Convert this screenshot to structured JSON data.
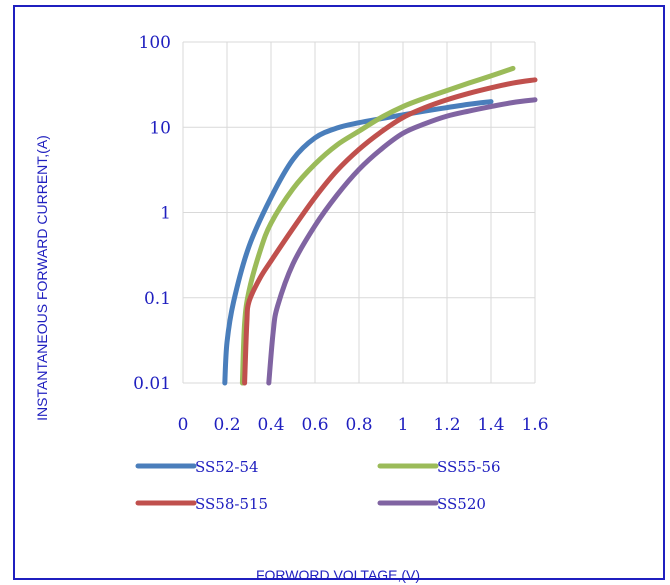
{
  "chart_data": {
    "type": "line",
    "title": "",
    "xlabel": "FORWORD VOLTAGE,(V)",
    "ylabel": "INSTANTANEOUS FORWARD CURRENT,(A)",
    "x_scale": "linear",
    "y_scale": "log",
    "xlim": [
      0,
      1.6
    ],
    "ylim": [
      0.01,
      100
    ],
    "grid": true,
    "legend_position": "bottom",
    "x_tick_labels": [
      "0",
      "0.2",
      "0.4",
      "0.6",
      "0.8",
      "1",
      "1.2",
      "1.4",
      "1.6"
    ],
    "x_tick_values": [
      0,
      0.2,
      0.4,
      0.6,
      0.8,
      1.0,
      1.2,
      1.4,
      1.6
    ],
    "y_tick_labels": [
      "0.01",
      "0.1",
      "1",
      "10",
      "100"
    ],
    "y_tick_values": [
      0.01,
      0.1,
      1,
      10,
      100
    ],
    "series": [
      {
        "name": "SS52-54",
        "color": "#4a7ebb",
        "points": [
          [
            0.19,
            0.01
          ],
          [
            0.2,
            0.03
          ],
          [
            0.23,
            0.09
          ],
          [
            0.3,
            0.4
          ],
          [
            0.4,
            1.5
          ],
          [
            0.5,
            4.2
          ],
          [
            0.6,
            7.5
          ],
          [
            0.7,
            9.8
          ],
          [
            0.8,
            11.3
          ],
          [
            0.9,
            12.6
          ],
          [
            1.0,
            14.0
          ],
          [
            1.1,
            15.5
          ],
          [
            1.2,
            17.0
          ],
          [
            1.3,
            18.6
          ],
          [
            1.4,
            20.0
          ]
        ]
      },
      {
        "name": "SS55-56",
        "color": "#9bbb59",
        "points": [
          [
            0.27,
            0.01
          ],
          [
            0.28,
            0.05
          ],
          [
            0.3,
            0.12
          ],
          [
            0.35,
            0.35
          ],
          [
            0.4,
            0.75
          ],
          [
            0.5,
            1.9
          ],
          [
            0.6,
            3.7
          ],
          [
            0.7,
            6.2
          ],
          [
            0.8,
            9.0
          ],
          [
            0.9,
            13.0
          ],
          [
            1.0,
            17.5
          ],
          [
            1.1,
            22.0
          ],
          [
            1.2,
            27.0
          ],
          [
            1.3,
            33.0
          ],
          [
            1.4,
            40.0
          ],
          [
            1.5,
            49.0
          ]
        ]
      },
      {
        "name": "SS58-515",
        "color": "#c0504d",
        "points": [
          [
            0.28,
            0.01
          ],
          [
            0.29,
            0.05
          ],
          [
            0.3,
            0.09
          ],
          [
            0.35,
            0.17
          ],
          [
            0.4,
            0.27
          ],
          [
            0.5,
            0.65
          ],
          [
            0.6,
            1.5
          ],
          [
            0.7,
            3.1
          ],
          [
            0.8,
            5.5
          ],
          [
            0.9,
            8.8
          ],
          [
            1.0,
            13.0
          ],
          [
            1.1,
            17.0
          ],
          [
            1.2,
            21.0
          ],
          [
            1.3,
            25.0
          ],
          [
            1.4,
            29.0
          ],
          [
            1.5,
            33.0
          ],
          [
            1.6,
            36.0
          ]
        ]
      },
      {
        "name": "SS520",
        "color": "#8064a2",
        "points": [
          [
            0.39,
            0.01
          ],
          [
            0.41,
            0.04
          ],
          [
            0.43,
            0.08
          ],
          [
            0.5,
            0.25
          ],
          [
            0.6,
            0.7
          ],
          [
            0.7,
            1.6
          ],
          [
            0.8,
            3.2
          ],
          [
            0.9,
            5.5
          ],
          [
            1.0,
            8.5
          ],
          [
            1.1,
            11.0
          ],
          [
            1.2,
            13.5
          ],
          [
            1.3,
            15.5
          ],
          [
            1.4,
            17.5
          ],
          [
            1.5,
            19.5
          ],
          [
            1.6,
            21.0
          ]
        ]
      }
    ]
  }
}
